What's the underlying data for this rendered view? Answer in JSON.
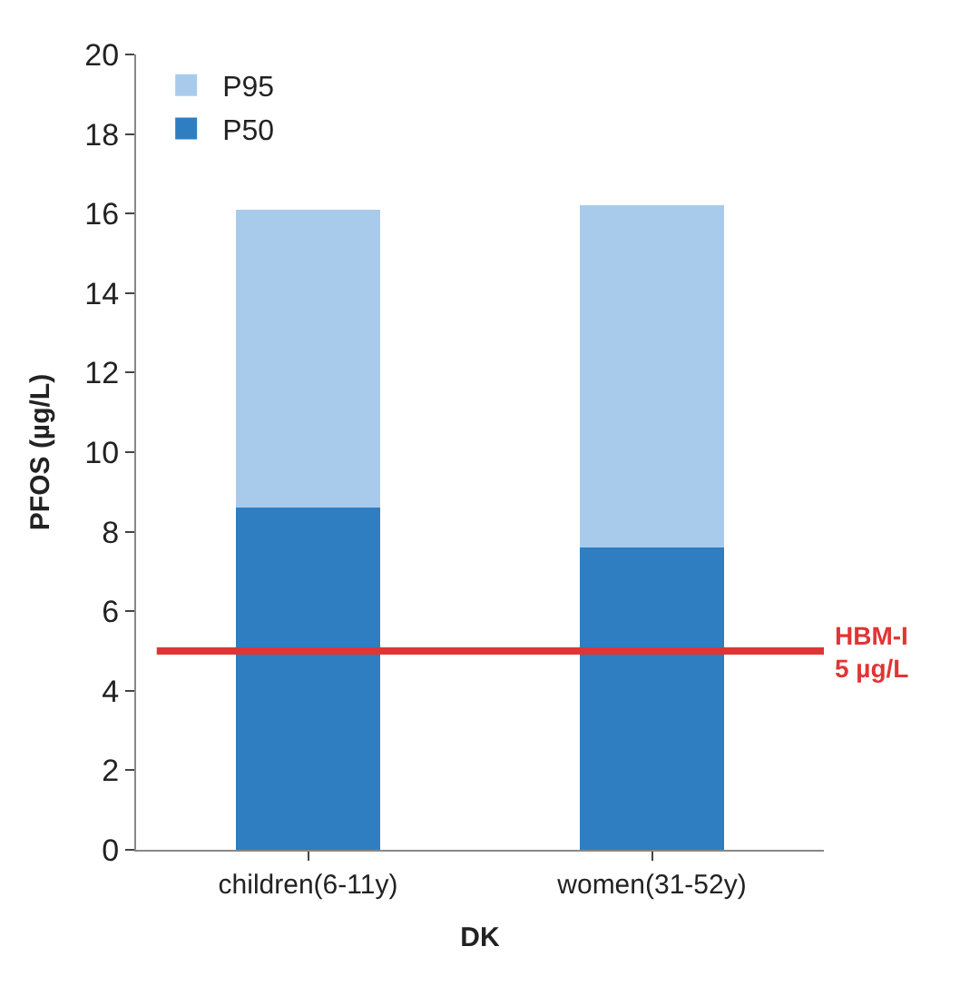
{
  "chart_data": {
    "type": "bar",
    "stacked": true,
    "xlabel": "DK",
    "ylabel": "PFOS (µg/L)",
    "categories": [
      "children(6-11y)",
      "women(31-52y)"
    ],
    "series": [
      {
        "name": "P50",
        "color": "#2e7ec1",
        "values": [
          8.6,
          7.6
        ]
      },
      {
        "name": "P95",
        "color": "#a9cbeb",
        "values": [
          7.5,
          8.6
        ]
      }
    ],
    "ylim": [
      0,
      20
    ],
    "yticks": [
      0,
      2,
      4,
      6,
      8,
      10,
      12,
      14,
      16,
      18,
      20
    ],
    "legend": "top left",
    "ref_lines": [
      {
        "axis": "y",
        "value": 5,
        "label": "HBM-I\n5 µg/L",
        "color": "#e03535"
      }
    ]
  }
}
